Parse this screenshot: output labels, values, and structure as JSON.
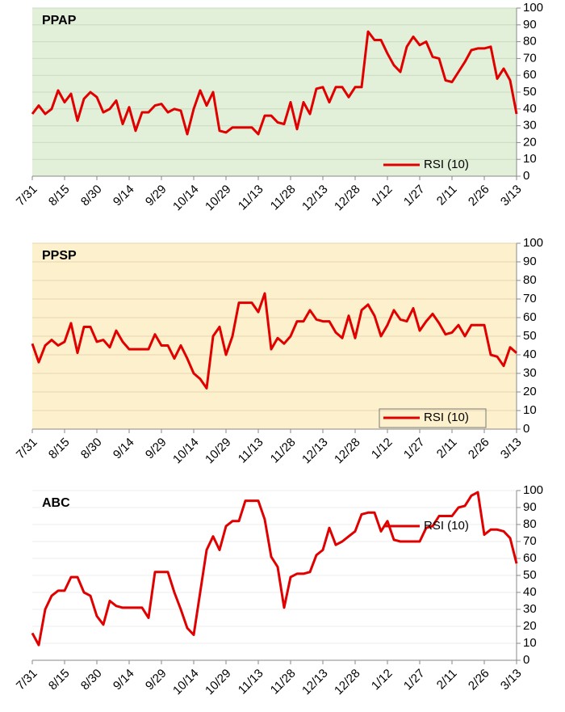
{
  "chart_data": [
    {
      "type": "line",
      "title": "PPAP",
      "background": "#e2efd9",
      "grid": true,
      "grid_color": "#c8dcc0",
      "legend": "lower right",
      "legend_frame": false,
      "categories": [
        "7/31",
        null,
        null,
        null,
        null,
        "8/15",
        null,
        null,
        null,
        null,
        "8/30",
        null,
        null,
        null,
        null,
        "9/14",
        null,
        null,
        null,
        null,
        "9/29",
        null,
        null,
        null,
        null,
        "10/14",
        null,
        null,
        null,
        null,
        "10/29",
        null,
        null,
        null,
        null,
        "11/13",
        null,
        null,
        null,
        null,
        "11/28",
        null,
        null,
        null,
        null,
        "12/13",
        null,
        null,
        null,
        null,
        "12/28",
        null,
        null,
        null,
        null,
        "1/12",
        null,
        null,
        null,
        null,
        "1/27",
        null,
        null,
        null,
        null,
        "2/11",
        null,
        null,
        null,
        null,
        "2/26",
        null,
        null,
        null,
        null,
        "3/13"
      ],
      "series": [
        {
          "name": "RSI (10)",
          "color": "#e00000",
          "values": [
            37,
            42,
            37,
            40,
            51,
            44,
            49,
            33,
            46,
            50,
            47,
            38,
            40,
            45,
            31,
            41,
            27,
            38,
            38,
            42,
            43,
            38,
            40,
            39,
            25,
            40,
            51,
            42,
            50,
            27,
            26,
            29,
            29,
            29,
            29,
            25,
            36,
            36,
            32,
            31,
            44,
            28,
            44,
            37,
            52,
            53,
            44,
            53,
            53,
            47,
            53,
            53,
            86,
            81,
            81,
            73,
            66,
            62,
            77,
            83,
            78,
            80,
            71,
            70,
            57,
            56,
            62,
            68,
            75,
            76,
            76,
            77,
            58,
            64,
            57,
            37
          ]
        }
      ],
      "ylim": [
        0,
        100
      ],
      "yticks": [
        0,
        10,
        20,
        30,
        40,
        50,
        60,
        70,
        80,
        90,
        100
      ]
    },
    {
      "type": "line",
      "title": "PPSP",
      "background": "#fdf0cc",
      "grid": true,
      "grid_color": "#e6d6b0",
      "legend": "lower right",
      "legend_frame": true,
      "categories": [
        "7/31",
        null,
        null,
        null,
        null,
        "8/15",
        null,
        null,
        null,
        null,
        "8/30",
        null,
        null,
        null,
        null,
        "9/14",
        null,
        null,
        null,
        null,
        "9/29",
        null,
        null,
        null,
        null,
        "10/14",
        null,
        null,
        null,
        null,
        "10/29",
        null,
        null,
        null,
        null,
        "11/13",
        null,
        null,
        null,
        null,
        "11/28",
        null,
        null,
        null,
        null,
        "12/13",
        null,
        null,
        null,
        null,
        "12/28",
        null,
        null,
        null,
        null,
        "1/12",
        null,
        null,
        null,
        null,
        "1/27",
        null,
        null,
        null,
        null,
        "2/11",
        null,
        null,
        null,
        null,
        "2/26",
        null,
        null,
        null,
        null,
        "3/13"
      ],
      "series": [
        {
          "name": "RSI (10)",
          "color": "#e00000",
          "values": [
            46,
            36,
            45,
            48,
            45,
            47,
            57,
            41,
            55,
            55,
            47,
            48,
            44,
            53,
            47,
            43,
            43,
            43,
            43,
            51,
            45,
            45,
            38,
            45,
            38,
            30,
            27,
            22,
            50,
            55,
            40,
            50,
            68,
            68,
            68,
            63,
            73,
            43,
            49,
            46,
            50,
            58,
            58,
            64,
            59,
            58,
            58,
            52,
            49,
            61,
            49,
            64,
            67,
            61,
            50,
            56,
            64,
            59,
            58,
            65,
            53,
            58,
            62,
            57,
            51,
            52,
            56,
            50,
            56,
            56,
            56,
            40,
            39,
            34,
            44,
            41
          ]
        }
      ],
      "ylim": [
        0,
        100
      ],
      "yticks": [
        0,
        10,
        20,
        30,
        40,
        50,
        60,
        70,
        80,
        90,
        100
      ]
    },
    {
      "type": "line",
      "title": "ABC",
      "background": "#ffffff",
      "grid": true,
      "grid_color": "#ececec",
      "legend": "upper right",
      "legend_frame": false,
      "categories": [
        "7/31",
        null,
        null,
        null,
        null,
        "8/15",
        null,
        null,
        null,
        null,
        "8/30",
        null,
        null,
        null,
        null,
        "9/14",
        null,
        null,
        null,
        null,
        "9/29",
        null,
        null,
        null,
        null,
        "10/14",
        null,
        null,
        null,
        null,
        "10/29",
        null,
        null,
        null,
        null,
        "11/13",
        null,
        null,
        null,
        null,
        "11/28",
        null,
        null,
        null,
        null,
        "12/13",
        null,
        null,
        null,
        null,
        "12/28",
        null,
        null,
        null,
        null,
        "1/12",
        null,
        null,
        null,
        null,
        "1/27",
        null,
        null,
        null,
        null,
        "2/11",
        null,
        null,
        null,
        null,
        "2/26",
        null,
        null,
        null,
        null,
        "3/13"
      ],
      "series": [
        {
          "name": "RSI (10)",
          "color": "#e00000",
          "values": [
            16,
            9,
            30,
            38,
            41,
            41,
            49,
            49,
            40,
            38,
            26,
            21,
            35,
            32,
            31,
            31,
            31,
            31,
            25,
            52,
            52,
            52,
            40,
            30,
            19,
            15,
            40,
            65,
            73,
            65,
            79,
            82,
            82,
            94,
            94,
            94,
            83,
            61,
            55,
            31,
            49,
            51,
            51,
            52,
            62,
            65,
            78,
            68,
            70,
            73,
            76,
            86,
            87,
            87,
            76,
            82,
            71,
            70,
            70,
            70,
            70,
            78,
            79,
            85,
            85,
            85,
            90,
            91,
            97,
            99,
            74,
            77,
            77,
            76,
            72,
            57
          ]
        }
      ],
      "ylim": [
        0,
        100
      ],
      "yticks": [
        0,
        10,
        20,
        30,
        40,
        50,
        60,
        70,
        80,
        90,
        100
      ]
    }
  ]
}
